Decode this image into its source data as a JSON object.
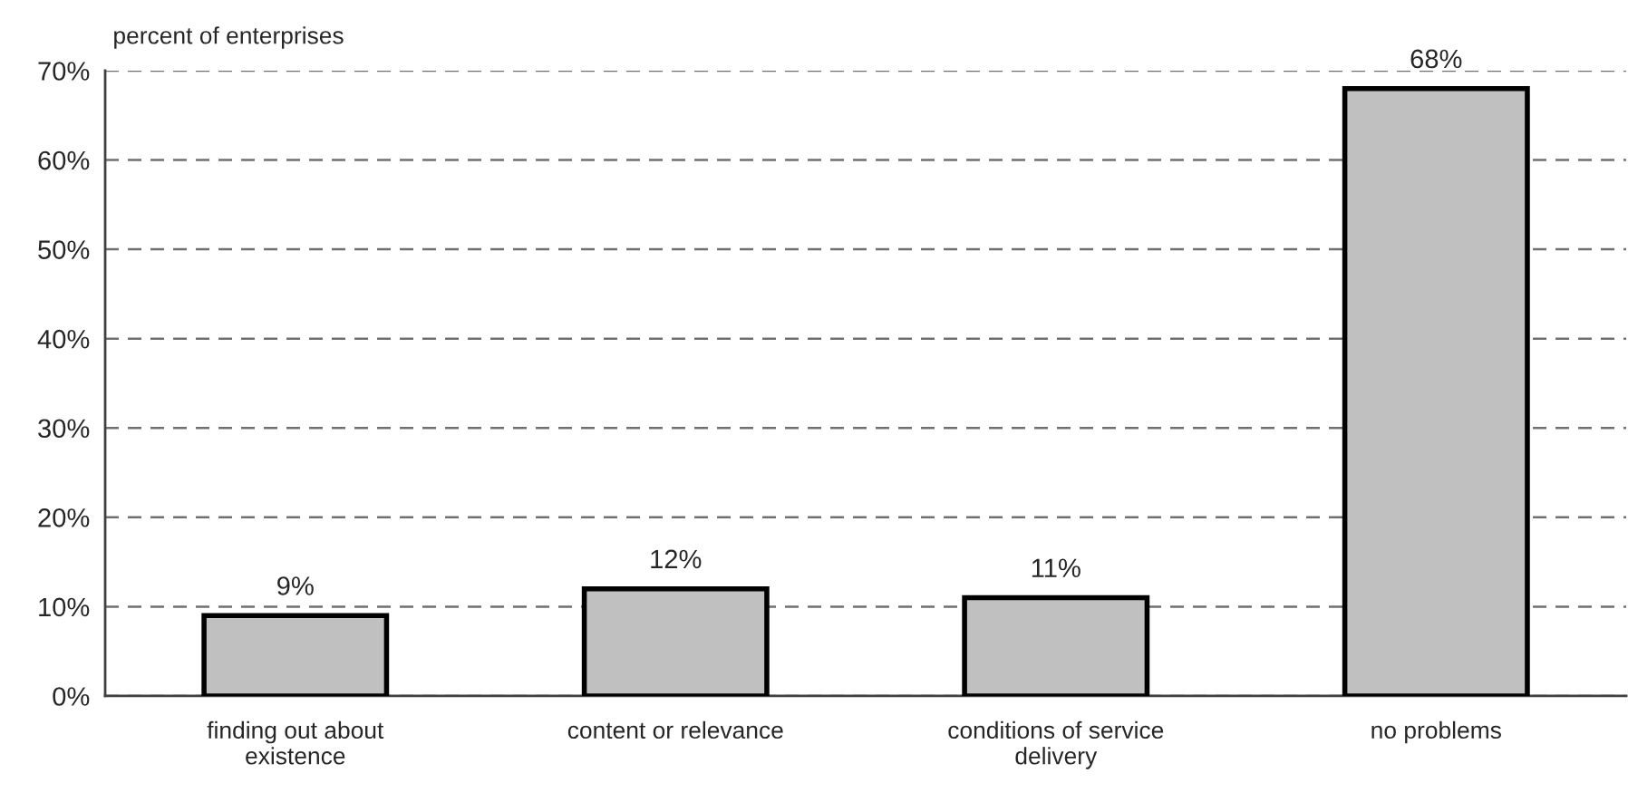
{
  "chart_data": {
    "type": "bar",
    "ylabel": "percent of enterprises",
    "categories": [
      "finding out about\nexistence",
      "content or relevance",
      "conditions of service\ndelivery",
      "no problems"
    ],
    "values": [
      9,
      12,
      11,
      68
    ],
    "value_labels": [
      "9%",
      "12%",
      "11%",
      "68%"
    ],
    "color": "#c0c0c0",
    "ylim": [
      0,
      70
    ],
    "yticks": [
      {
        "value": 0,
        "label": "0%"
      },
      {
        "value": 10,
        "label": "10%"
      },
      {
        "value": 20,
        "label": "20%"
      },
      {
        "value": 30,
        "label": "30%"
      },
      {
        "value": 40,
        "label": "40%"
      },
      {
        "value": 50,
        "label": "50%"
      },
      {
        "value": 60,
        "label": "60%"
      },
      {
        "value": 70,
        "label": "70%"
      }
    ],
    "grid": "y",
    "legend": false
  }
}
